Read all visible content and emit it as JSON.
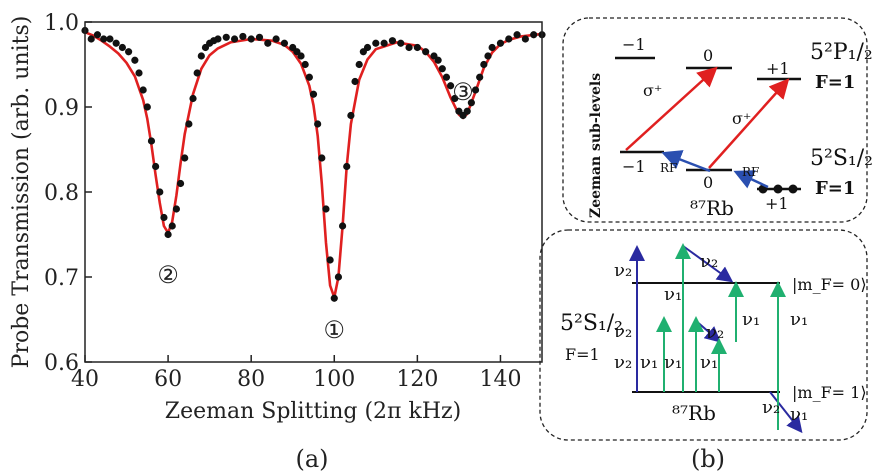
{
  "chart_data": {
    "type": "scatter",
    "xlabel": "Zeeman Splitting (2π kHz)",
    "ylabel": "Probe Transmission (arb. units)",
    "xlim": [
      40,
      150
    ],
    "ylim": [
      0.6,
      1.0
    ],
    "xticks": [
      "40",
      "60",
      "80",
      "100",
      "120",
      "140"
    ],
    "yticks": [
      "0.6",
      "0.7",
      "0.8",
      "0.9",
      "1.0"
    ],
    "series": [
      {
        "kind": "points",
        "color": "#111111",
        "x": [
          40,
          41.5,
          43,
          44.5,
          46,
          47.5,
          49,
          50.5,
          52,
          53,
          54,
          55,
          56,
          57,
          58,
          59,
          60,
          61,
          62,
          63,
          64,
          65,
          66,
          67,
          68,
          69,
          70,
          71,
          72,
          74,
          76,
          78,
          80,
          82,
          84,
          86,
          88,
          90,
          91,
          92,
          93,
          94,
          95,
          96,
          97,
          98,
          99,
          100,
          101,
          102,
          103,
          104,
          105,
          106,
          107,
          108,
          110,
          112,
          114,
          116,
          118,
          120,
          122,
          124,
          125,
          126,
          127,
          128,
          129,
          130,
          131,
          132,
          133,
          134,
          135,
          136,
          137,
          138,
          140,
          142,
          144,
          146,
          148,
          150
        ],
        "y": [
          0.99,
          0.98,
          0.985,
          0.98,
          0.98,
          0.975,
          0.97,
          0.965,
          0.955,
          0.94,
          0.92,
          0.9,
          0.86,
          0.83,
          0.8,
          0.77,
          0.75,
          0.76,
          0.78,
          0.81,
          0.84,
          0.88,
          0.91,
          0.94,
          0.96,
          0.97,
          0.975,
          0.978,
          0.98,
          0.982,
          0.98,
          0.983,
          0.98,
          0.982,
          0.975,
          0.98,
          0.975,
          0.97,
          0.965,
          0.96,
          0.95,
          0.935,
          0.915,
          0.88,
          0.84,
          0.78,
          0.72,
          0.675,
          0.7,
          0.76,
          0.83,
          0.89,
          0.93,
          0.95,
          0.965,
          0.97,
          0.975,
          0.975,
          0.978,
          0.975,
          0.97,
          0.97,
          0.965,
          0.96,
          0.955,
          0.945,
          0.935,
          0.925,
          0.91,
          0.895,
          0.89,
          0.895,
          0.905,
          0.92,
          0.935,
          0.95,
          0.96,
          0.97,
          0.975,
          0.98,
          0.985,
          0.98,
          0.985,
          0.985
        ]
      },
      {
        "kind": "fit-curve",
        "color": "#e02020",
        "x": [
          40,
          42,
          44,
          46,
          48,
          50,
          52,
          54,
          55,
          56,
          57,
          58,
          59,
          60,
          61,
          62,
          63,
          64,
          66,
          68,
          70,
          72,
          75,
          80,
          85,
          88,
          90,
          92,
          94,
          95,
          96,
          97,
          98,
          99,
          100,
          101,
          102,
          103,
          104,
          106,
          108,
          110,
          115,
          120,
          122,
          124,
          126,
          128,
          130,
          131,
          132,
          134,
          136,
          138,
          140,
          142,
          145,
          150
        ],
        "y": [
          0.988,
          0.984,
          0.978,
          0.971,
          0.963,
          0.952,
          0.936,
          0.908,
          0.886,
          0.855,
          0.82,
          0.787,
          0.76,
          0.752,
          0.765,
          0.796,
          0.834,
          0.868,
          0.915,
          0.945,
          0.961,
          0.969,
          0.976,
          0.98,
          0.978,
          0.973,
          0.965,
          0.951,
          0.925,
          0.902,
          0.866,
          0.81,
          0.74,
          0.69,
          0.676,
          0.7,
          0.76,
          0.83,
          0.88,
          0.932,
          0.956,
          0.968,
          0.976,
          0.972,
          0.965,
          0.953,
          0.935,
          0.911,
          0.891,
          0.887,
          0.892,
          0.918,
          0.946,
          0.964,
          0.974,
          0.979,
          0.983,
          0.986
        ]
      }
    ],
    "annotations": [
      {
        "text": "①",
        "x": 100,
        "y": 0.64
      },
      {
        "text": "②",
        "x": 60,
        "y": 0.705
      },
      {
        "text": "③",
        "x": 131,
        "y": 0.92
      }
    ],
    "panel_labels": [
      "(a)",
      "(b)"
    ]
  },
  "diagram_top": {
    "side_label": "Zeeman sub-levels",
    "upper_state": "5²P₁/₂",
    "upper_F": "F=1",
    "lower_state": "5²S₁/₂",
    "lower_F": "F=1",
    "upper_levels": [
      "−1",
      "0",
      "+1"
    ],
    "lower_levels": [
      "−1",
      "0",
      "+1"
    ],
    "transition_label": "σ⁺",
    "rf_label": "RF",
    "atom": "⁸⁷Rb",
    "colors": {
      "optical": "#e02020",
      "rf": "#2a4fb0"
    }
  },
  "diagram_bottom": {
    "state": "5²S₁/₂",
    "state_F": "F=1",
    "level_upper": "|m_F= 0⟩",
    "level_lower": "|m_F= 1⟩",
    "nu1": "ν₁",
    "nu2": "ν₂",
    "atom": "⁸⁷Rb",
    "colors": {
      "nu1": "#20b070",
      "nu2": "#2a2aa0"
    }
  }
}
